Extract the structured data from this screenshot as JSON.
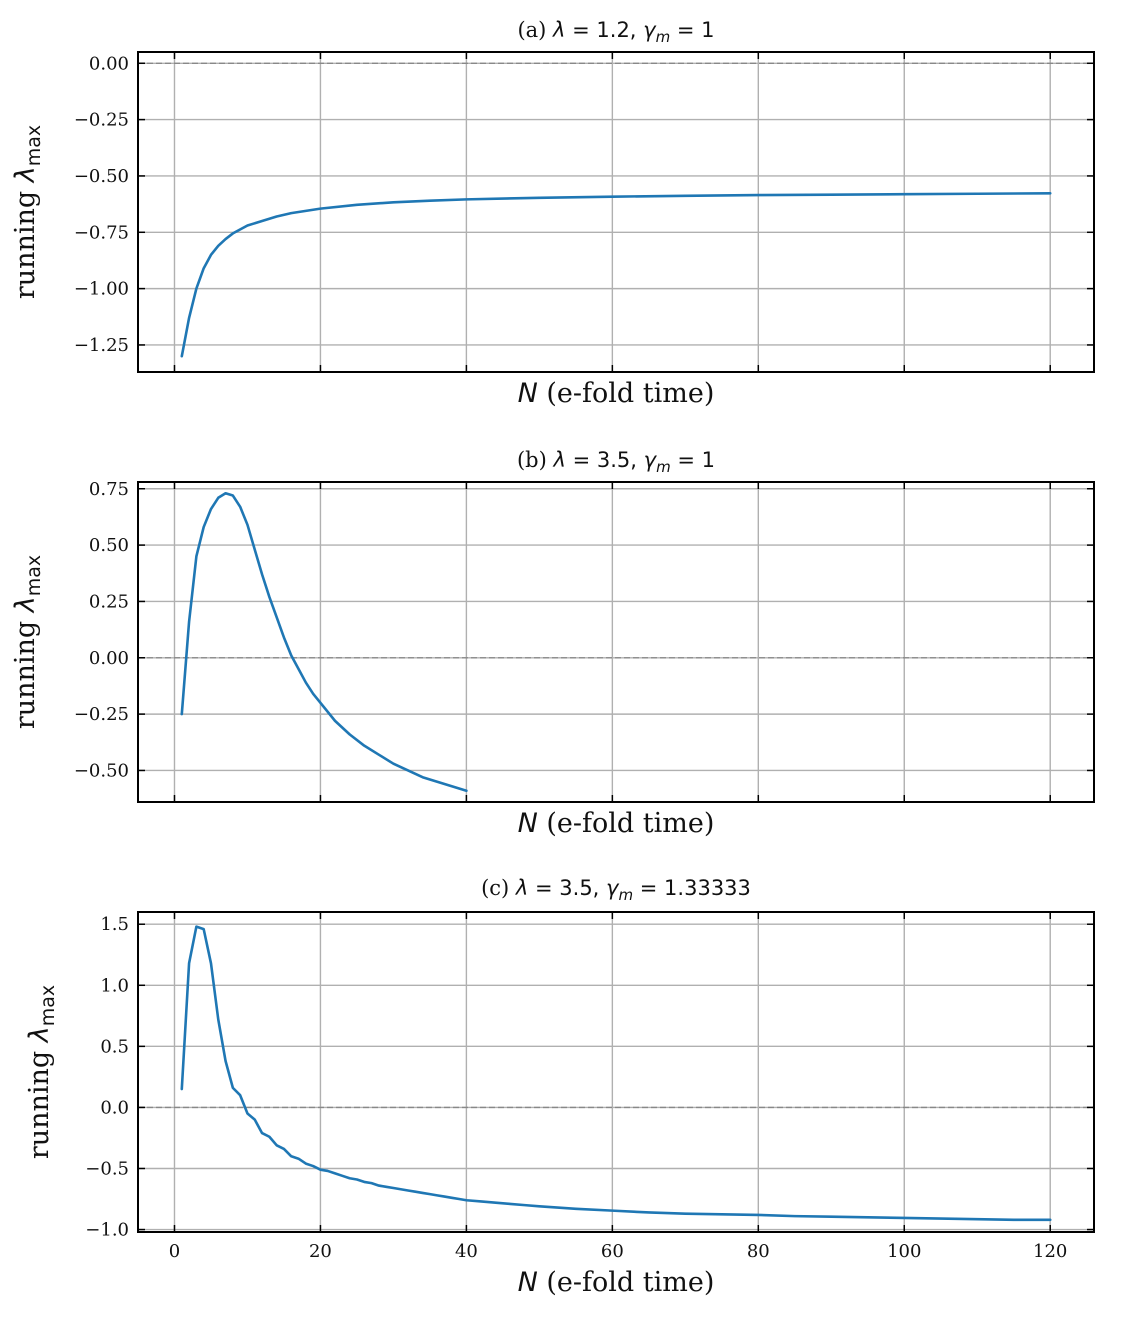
{
  "chart_data": [
    {
      "type": "line",
      "panel_label": "(a)",
      "title_params": {
        "lambda_value": "1.2",
        "gamma_m_value": "1"
      },
      "xlabel_symbol": "N",
      "xlabel_rest": "(e-fold time)",
      "ylabel_text": "running",
      "ylabel_symbol": "λ",
      "ylabel_subscript": "max",
      "xlim": [
        -5,
        126
      ],
      "ylim": [
        -1.37,
        0.05
      ],
      "xticks": [
        0,
        20,
        40,
        60,
        80,
        100,
        120
      ],
      "show_xtick_labels": false,
      "yticks": [
        0.0,
        -0.25,
        -0.5,
        -0.75,
        -1.0,
        -1.25
      ],
      "ytick_labels": [
        "0.00",
        "−0.25",
        "−0.50",
        "−0.75",
        "−1.00",
        "−1.25"
      ],
      "grid": true,
      "zero_line": "dashed",
      "series": [
        {
          "color": "#1f77b4",
          "x": [
            1,
            2,
            3,
            4,
            5,
            6,
            7,
            8,
            10,
            12,
            14,
            16,
            18,
            20,
            25,
            30,
            35,
            40,
            50,
            60,
            70,
            80,
            90,
            100,
            110,
            120
          ],
          "y": [
            -1.3,
            -1.13,
            -1.0,
            -0.91,
            -0.85,
            -0.81,
            -0.78,
            -0.755,
            -0.72,
            -0.7,
            -0.68,
            -0.665,
            -0.655,
            -0.645,
            -0.628,
            -0.617,
            -0.61,
            -0.604,
            -0.597,
            -0.592,
            -0.588,
            -0.585,
            -0.583,
            -0.581,
            -0.579,
            -0.577
          ]
        }
      ]
    },
    {
      "type": "line",
      "panel_label": "(b)",
      "title_params": {
        "lambda_value": "3.5",
        "gamma_m_value": "1"
      },
      "xlabel_symbol": "N",
      "xlabel_rest": "(e-fold time)",
      "ylabel_text": "running",
      "ylabel_symbol": "λ",
      "ylabel_subscript": "max",
      "xlim": [
        -5,
        126
      ],
      "ylim": [
        -0.64,
        0.78
      ],
      "xticks": [
        0,
        20,
        40,
        60,
        80,
        100,
        120
      ],
      "show_xtick_labels": false,
      "yticks": [
        0.75,
        0.5,
        0.25,
        0.0,
        -0.25,
        -0.5
      ],
      "ytick_labels": [
        "0.75",
        "0.50",
        "0.25",
        "0.00",
        "−0.25",
        "−0.50"
      ],
      "grid": true,
      "zero_line": "dashed",
      "series": [
        {
          "color": "#1f77b4",
          "x": [
            1,
            2,
            3,
            4,
            5,
            6,
            7,
            8,
            9,
            10,
            11,
            12,
            13,
            14,
            15,
            16,
            17,
            18,
            19,
            20,
            22,
            24,
            26,
            28,
            30,
            32,
            34,
            36,
            38,
            40
          ],
          "y": [
            -0.25,
            0.16,
            0.45,
            0.58,
            0.66,
            0.71,
            0.73,
            0.72,
            0.67,
            0.59,
            0.48,
            0.37,
            0.27,
            0.18,
            0.09,
            0.01,
            -0.05,
            -0.11,
            -0.16,
            -0.2,
            -0.28,
            -0.34,
            -0.39,
            -0.43,
            -0.47,
            -0.5,
            -0.53,
            -0.55,
            -0.57,
            -0.59
          ]
        }
      ]
    },
    {
      "type": "line",
      "panel_label": "(c)",
      "title_params": {
        "lambda_value": "3.5",
        "gamma_m_value": "1.33333"
      },
      "xlabel_symbol": "N",
      "xlabel_rest": "(e-fold time)",
      "ylabel_text": "running",
      "ylabel_symbol": "λ",
      "ylabel_subscript": "max",
      "xlim": [
        -5,
        126
      ],
      "ylim": [
        -1.02,
        1.6
      ],
      "xticks": [
        0,
        20,
        40,
        60,
        80,
        100,
        120
      ],
      "xtick_labels": [
        "0",
        "20",
        "40",
        "60",
        "80",
        "100",
        "120"
      ],
      "show_xtick_labels": true,
      "yticks": [
        1.5,
        1.0,
        0.5,
        0.0,
        -0.5,
        -1.0
      ],
      "ytick_labels": [
        "1.5",
        "1.0",
        "0.5",
        "0.0",
        "−0.5",
        "−1.0"
      ],
      "grid": true,
      "zero_line": "dashed",
      "series": [
        {
          "color": "#1f77b4",
          "x": [
            1,
            2,
            3,
            4,
            5,
            6,
            7,
            8,
            9,
            10,
            11,
            12,
            13,
            14,
            15,
            16,
            17,
            18,
            19,
            20,
            21,
            22,
            23,
            24,
            25,
            26,
            27,
            28,
            29,
            30,
            31,
            32,
            33,
            34,
            35,
            36,
            37,
            38,
            39,
            40,
            42,
            44,
            46,
            48,
            50,
            55,
            60,
            65,
            70,
            75,
            80,
            85,
            90,
            95,
            100,
            105,
            110,
            115,
            120
          ],
          "y": [
            0.15,
            1.18,
            1.48,
            1.46,
            1.18,
            0.72,
            0.38,
            0.16,
            0.1,
            -0.05,
            -0.1,
            -0.21,
            -0.24,
            -0.31,
            -0.34,
            -0.4,
            -0.42,
            -0.46,
            -0.48,
            -0.51,
            -0.52,
            -0.54,
            -0.56,
            -0.58,
            -0.59,
            -0.61,
            -0.62,
            -0.64,
            -0.65,
            -0.66,
            -0.67,
            -0.68,
            -0.69,
            -0.7,
            -0.71,
            -0.72,
            -0.73,
            -0.74,
            -0.75,
            -0.76,
            -0.77,
            -0.78,
            -0.79,
            -0.8,
            -0.81,
            -0.83,
            -0.845,
            -0.86,
            -0.87,
            -0.875,
            -0.88,
            -0.89,
            -0.895,
            -0.9,
            -0.905,
            -0.91,
            -0.915,
            -0.92,
            -0.92
          ]
        }
      ]
    }
  ]
}
